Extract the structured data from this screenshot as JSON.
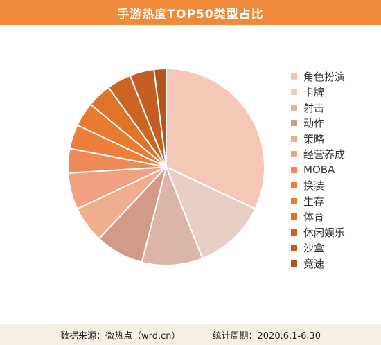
{
  "title": "手游热度TOP50类型占比",
  "footer": {
    "source": "数据来源：微热点（wrd.cn）",
    "period": "统计周期：2020.6.1-6.30"
  },
  "chart_data": {
    "type": "pie",
    "legend_position": "right",
    "start_angle_deg": 0,
    "direction": "clockwise",
    "categories": [
      "角色扮演",
      "卡牌",
      "射击",
      "动作",
      "策略",
      "经营养成",
      "MOBA",
      "换装",
      "生存",
      "体育",
      "休闲娱乐",
      "沙盒",
      "竞速"
    ],
    "values": [
      32,
      12,
      10,
      8,
      6,
      6,
      4,
      4,
      4,
      4,
      4,
      4,
      2
    ],
    "colors": [
      "#f4c7b6",
      "#e7cfc6",
      "#dbb6a8",
      "#d39a88",
      "#efae8e",
      "#f2a283",
      "#ee8a57",
      "#ee7e3c",
      "#e97a2e",
      "#df7429",
      "#cc6524",
      "#c45e22",
      "#b2561e"
    ]
  }
}
